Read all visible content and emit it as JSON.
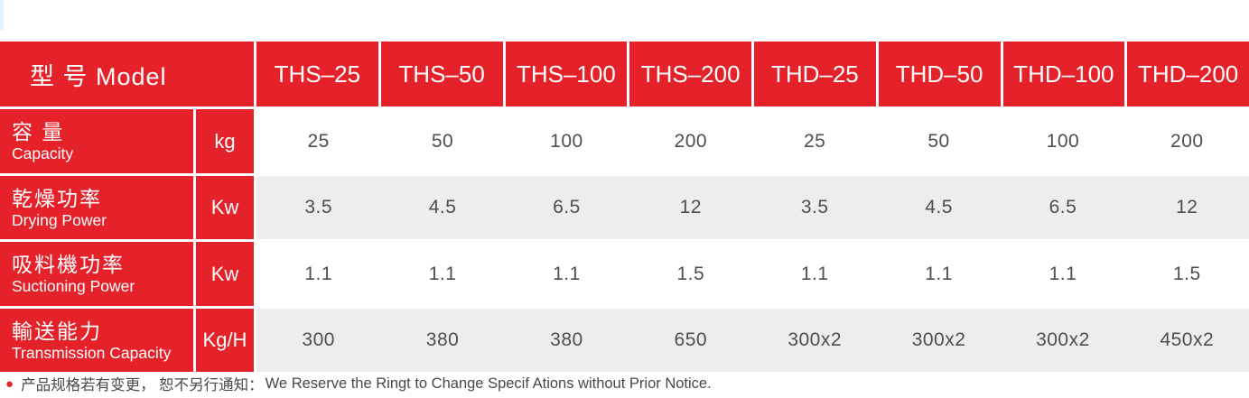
{
  "colors": {
    "red": "#e5212a",
    "band_gray": "#ededee",
    "data_text": "#4d4e50",
    "accent_strip": "#e1f0fa"
  },
  "table": {
    "header": {
      "label": "型 号 Model",
      "models": [
        "THS–25",
        "THS–50",
        "THS–100",
        "THS–200",
        "THD–25",
        "THD–50",
        "THD–100",
        "THD–200"
      ]
    },
    "rows": [
      {
        "label_zh": "容 量",
        "label_en": "Capacity",
        "unit": "kg",
        "values": [
          "25",
          "50",
          "100",
          "200",
          "25",
          "50",
          "100",
          "200"
        ]
      },
      {
        "label_zh": "乾燥功率",
        "label_en": "Drying Power",
        "unit": "Kw",
        "values": [
          "3.5",
          "4.5",
          "6.5",
          "12",
          "3.5",
          "4.5",
          "6.5",
          "12"
        ]
      },
      {
        "label_zh": "吸料機功率",
        "label_en": "Suctioning Power",
        "unit": "Kw",
        "values": [
          "1.1",
          "1.1",
          "1.1",
          "1.5",
          "1.1",
          "1.1",
          "1.1",
          "1.5"
        ]
      },
      {
        "label_zh": "輸送能力",
        "label_en": "Transmission Capacity",
        "unit": "Kg/H",
        "values": [
          "300",
          "380",
          "380",
          "650",
          "300x2",
          "300x2",
          "300x2",
          "450x2"
        ]
      }
    ]
  },
  "footer": {
    "bullet": "●",
    "note_zh": "产品规格若有变更， 恕不另行通知：",
    "note_en": "We Reserve the Ringt to Change Specif Ations without Prior Notice."
  }
}
